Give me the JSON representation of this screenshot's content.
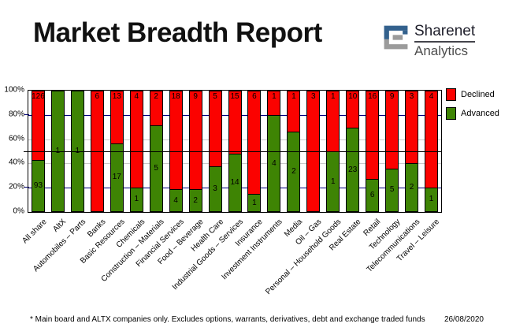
{
  "header": {
    "title": "Market Breadth Report"
  },
  "logo": {
    "name": "Sharenet",
    "sub": "Analytics",
    "glyph": "sharenet-square-s",
    "blue": "#33618d",
    "gray": "#9b9b9b"
  },
  "legend": [
    {
      "label": "Declined",
      "color": "#fb0200"
    },
    {
      "label": "Advanced",
      "color": "#3e8404"
    }
  ],
  "chart_data": {
    "type": "bar",
    "stacked": true,
    "normalized": "percent_of_total",
    "title": "Market Breadth Report",
    "categories": [
      "All share",
      "AltX",
      "Automobiles – Parts",
      "Banks",
      "Basic Resources",
      "Chemicals",
      "Construction – Materials",
      "Financial Services",
      "Food – Beverage",
      "Health Care",
      "Industrial Goods – Services",
      "Insurance",
      "Investment Instruments",
      "Media",
      "Oil – Gas",
      "Personal – Household Goods",
      "Real Estate",
      "Retail",
      "Technology",
      "Telecommunications",
      "Travel – Leisure"
    ],
    "series": [
      {
        "name": "Declined",
        "color": "#fb0200",
        "values": [
          126,
          0,
          0,
          6,
          13,
          4,
          2,
          18,
          9,
          5,
          15,
          6,
          1,
          1,
          3,
          1,
          10,
          16,
          9,
          3,
          4
        ]
      },
      {
        "name": "Advanced",
        "color": "#3e8404",
        "values": [
          93,
          1,
          1,
          0,
          17,
          1,
          5,
          4,
          2,
          3,
          14,
          1,
          4,
          2,
          0,
          1,
          23,
          6,
          5,
          2,
          1
        ]
      }
    ],
    "ylim": [
      0,
      100
    ],
    "ytick_labels": [
      "100%",
      "80%",
      "60%",
      "40%",
      "20%",
      "0%"
    ],
    "gridlines": [
      {
        "pct_from_top": 20,
        "color": "#000080"
      },
      {
        "pct_from_top": 40,
        "color": "#c9c9c9"
      },
      {
        "pct_from_top": 60,
        "color": "#c9c9c9"
      },
      {
        "pct_from_top": 80,
        "color": "#000080"
      }
    ],
    "reference_line_pct": 50,
    "grid": "horizontal",
    "legend_position": "top-right"
  },
  "footer": {
    "note": "* Main board and ALTX companies only. Excludes options, warrants, derivatives, debt and exchange traded funds",
    "date": "26/08/2020"
  }
}
